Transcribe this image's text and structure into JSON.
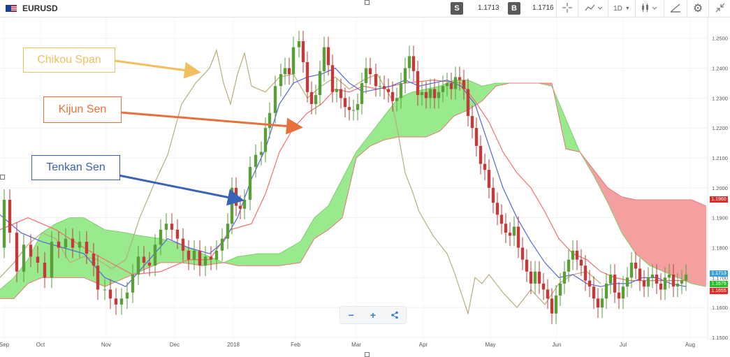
{
  "header": {
    "symbol": "EURUSD",
    "sell_label": "S",
    "sell_price": "1.1713",
    "buy_label": "B",
    "buy_price": "1.1716",
    "timeframe": "1D"
  },
  "annotations": {
    "chikou": {
      "label": "Chikou Span",
      "color": "#f0c060"
    },
    "kijun": {
      "label": "Kijun Sen",
      "color": "#e8703a"
    },
    "tenkan": {
      "label": "Tenkan Sen",
      "color": "#3a62b8"
    }
  },
  "zoom_controls": {
    "minus": "−",
    "plus": "+"
  },
  "colors": {
    "bull": "#5a9e3a",
    "bear": "#c23b3b",
    "cloud_bull": "#98ea8c",
    "cloud_bear": "#f4a0a0",
    "tenkan": "#5566e0",
    "kijun": "#f07070",
    "chikou": "#b8ad7a"
  },
  "chart_data": {
    "type": "candlestick",
    "y_ticks": [
      "1.2500",
      "1.2400",
      "1.2300",
      "1.2200",
      "1.2100",
      "1.2000",
      "1.1900",
      "1.1800",
      "1.1700",
      "1.1600",
      "1.1500"
    ],
    "x_labels": [
      "Sep",
      "Oct",
      "Nov",
      "Dec",
      "2018",
      "Feb",
      "Mar",
      "Apr",
      "May",
      "Jun",
      "Jul",
      "Aug"
    ],
    "ylim": [
      1.15,
      1.256
    ],
    "price_tags": [
      {
        "value": "1.1960",
        "price": 1.196,
        "color": "#e02b2b"
      },
      {
        "value": "1.1713",
        "price": 1.1713,
        "color": "#3aa0e0"
      },
      {
        "value": "1.1679",
        "price": 1.1679,
        "color": "#24c024"
      },
      {
        "value": "1.1655",
        "price": 1.1655,
        "color": "#e02b2b"
      }
    ],
    "close_series": [
      [
        0,
        1.18
      ],
      [
        6,
        1.196
      ],
      [
        14,
        1.185
      ],
      [
        24,
        1.172
      ],
      [
        34,
        1.181
      ],
      [
        44,
        1.177
      ],
      [
        54,
        1.175
      ],
      [
        64,
        1.17
      ],
      [
        74,
        1.182
      ],
      [
        84,
        1.18
      ],
      [
        94,
        1.183
      ],
      [
        104,
        1.18
      ],
      [
        114,
        1.182
      ],
      [
        124,
        1.178
      ],
      [
        134,
        1.174
      ],
      [
        140,
        1.166
      ],
      [
        150,
        1.166
      ],
      [
        158,
        1.163
      ],
      [
        166,
        1.161
      ],
      [
        174,
        1.163
      ],
      [
        182,
        1.165
      ],
      [
        190,
        1.171
      ],
      [
        198,
        1.177
      ],
      [
        206,
        1.175
      ],
      [
        214,
        1.174
      ],
      [
        222,
        1.181
      ],
      [
        230,
        1.186
      ],
      [
        238,
        1.188
      ],
      [
        246,
        1.186
      ],
      [
        254,
        1.183
      ],
      [
        262,
        1.179
      ],
      [
        270,
        1.176
      ],
      [
        278,
        1.179
      ],
      [
        286,
        1.174
      ],
      [
        294,
        1.177
      ],
      [
        302,
        1.176
      ],
      [
        310,
        1.179
      ],
      [
        318,
        1.183
      ],
      [
        326,
        1.188
      ],
      [
        332,
        1.2
      ],
      [
        338,
        1.194
      ],
      [
        344,
        1.193
      ],
      [
        350,
        1.196
      ],
      [
        358,
        1.207
      ],
      [
        366,
        1.211
      ],
      [
        374,
        1.212
      ],
      [
        380,
        1.22
      ],
      [
        386,
        1.225
      ],
      [
        394,
        1.234
      ],
      [
        402,
        1.238
      ],
      [
        408,
        1.24
      ],
      [
        414,
        1.238
      ],
      [
        420,
        1.247
      ],
      [
        428,
        1.249
      ],
      [
        434,
        1.242
      ],
      [
        440,
        1.232
      ],
      [
        446,
        1.228
      ],
      [
        452,
        1.231
      ],
      [
        458,
        1.239
      ],
      [
        464,
        1.247
      ],
      [
        470,
        1.241
      ],
      [
        476,
        1.232
      ],
      [
        482,
        1.233
      ],
      [
        488,
        1.23
      ],
      [
        494,
        1.227
      ],
      [
        500,
        1.226
      ],
      [
        506,
        1.226
      ],
      [
        512,
        1.228
      ],
      [
        518,
        1.235
      ],
      [
        524,
        1.24
      ],
      [
        530,
        1.238
      ],
      [
        538,
        1.234
      ],
      [
        544,
        1.234
      ],
      [
        550,
        1.233
      ],
      [
        556,
        1.232
      ],
      [
        562,
        1.229
      ],
      [
        568,
        1.23
      ],
      [
        574,
        1.235
      ],
      [
        580,
        1.24
      ],
      [
        586,
        1.244
      ],
      [
        592,
        1.239
      ],
      [
        598,
        1.231
      ],
      [
        604,
        1.232
      ],
      [
        610,
        1.23
      ],
      [
        616,
        1.233
      ],
      [
        622,
        1.23
      ],
      [
        628,
        1.232
      ],
      [
        634,
        1.234
      ],
      [
        640,
        1.235
      ],
      [
        646,
        1.233
      ],
      [
        652,
        1.237
      ],
      [
        658,
        1.236
      ],
      [
        664,
        1.233
      ],
      [
        670,
        1.224
      ],
      [
        676,
        1.22
      ],
      [
        682,
        1.214
      ],
      [
        688,
        1.208
      ],
      [
        694,
        1.206
      ],
      [
        700,
        1.2
      ],
      [
        706,
        1.195
      ],
      [
        712,
        1.191
      ],
      [
        718,
        1.188
      ],
      [
        724,
        1.185
      ],
      [
        730,
        1.184
      ],
      [
        736,
        1.187
      ],
      [
        742,
        1.18
      ],
      [
        748,
        1.176
      ],
      [
        754,
        1.172
      ],
      [
        760,
        1.168
      ],
      [
        766,
        1.172
      ],
      [
        772,
        1.168
      ],
      [
        778,
        1.166
      ],
      [
        784,
        1.163
      ],
      [
        790,
        1.158
      ],
      [
        796,
        1.164
      ],
      [
        802,
        1.168
      ],
      [
        808,
        1.172
      ],
      [
        814,
        1.176
      ],
      [
        820,
        1.179
      ],
      [
        826,
        1.176
      ],
      [
        832,
        1.174
      ],
      [
        838,
        1.169
      ],
      [
        844,
        1.167
      ],
      [
        850,
        1.163
      ],
      [
        856,
        1.16
      ],
      [
        862,
        1.163
      ],
      [
        868,
        1.168
      ],
      [
        874,
        1.171
      ],
      [
        880,
        1.165
      ],
      [
        886,
        1.163
      ],
      [
        892,
        1.167
      ],
      [
        898,
        1.17
      ],
      [
        904,
        1.175
      ],
      [
        910,
        1.173
      ],
      [
        916,
        1.169
      ],
      [
        922,
        1.167
      ],
      [
        928,
        1.17
      ],
      [
        934,
        1.171
      ],
      [
        940,
        1.168
      ],
      [
        946,
        1.166
      ],
      [
        952,
        1.17
      ],
      [
        958,
        1.171
      ],
      [
        964,
        1.167
      ],
      [
        970,
        1.168
      ],
      [
        976,
        1.169
      ],
      [
        982,
        1.171
      ]
    ],
    "tenkan": [
      [
        0,
        1.191
      ],
      [
        30,
        1.185
      ],
      [
        60,
        1.182
      ],
      [
        90,
        1.18
      ],
      [
        120,
        1.178
      ],
      [
        150,
        1.17
      ],
      [
        180,
        1.167
      ],
      [
        210,
        1.175
      ],
      [
        240,
        1.183
      ],
      [
        270,
        1.18
      ],
      [
        300,
        1.178
      ],
      [
        320,
        1.182
      ],
      [
        340,
        1.19
      ],
      [
        360,
        1.203
      ],
      [
        380,
        1.213
      ],
      [
        400,
        1.228
      ],
      [
        420,
        1.235
      ],
      [
        440,
        1.237
      ],
      [
        460,
        1.238
      ],
      [
        480,
        1.24
      ],
      [
        500,
        1.235
      ],
      [
        520,
        1.232
      ],
      [
        540,
        1.233
      ],
      [
        560,
        1.234
      ],
      [
        580,
        1.236
      ],
      [
        600,
        1.234
      ],
      [
        620,
        1.235
      ],
      [
        640,
        1.236
      ],
      [
        660,
        1.234
      ],
      [
        680,
        1.228
      ],
      [
        700,
        1.214
      ],
      [
        720,
        1.2
      ],
      [
        740,
        1.19
      ],
      [
        760,
        1.182
      ],
      [
        780,
        1.175
      ],
      [
        800,
        1.17
      ],
      [
        820,
        1.171
      ],
      [
        840,
        1.168
      ],
      [
        860,
        1.167
      ],
      [
        880,
        1.168
      ],
      [
        900,
        1.168
      ],
      [
        920,
        1.17
      ],
      [
        940,
        1.17
      ],
      [
        960,
        1.168
      ],
      [
        982,
        1.167
      ]
    ],
    "kijun": [
      [
        0,
        1.186
      ],
      [
        40,
        1.19
      ],
      [
        80,
        1.186
      ],
      [
        120,
        1.18
      ],
      [
        150,
        1.176
      ],
      [
        190,
        1.171
      ],
      [
        230,
        1.172
      ],
      [
        270,
        1.176
      ],
      [
        300,
        1.176
      ],
      [
        330,
        1.186
      ],
      [
        360,
        1.188
      ],
      [
        380,
        1.198
      ],
      [
        400,
        1.212
      ],
      [
        420,
        1.22
      ],
      [
        440,
        1.225
      ],
      [
        460,
        1.228
      ],
      [
        480,
        1.233
      ],
      [
        500,
        1.232
      ],
      [
        520,
        1.234
      ],
      [
        540,
        1.233
      ],
      [
        560,
        1.234
      ],
      [
        580,
        1.235
      ],
      [
        620,
        1.236
      ],
      [
        660,
        1.235
      ],
      [
        680,
        1.229
      ],
      [
        700,
        1.222
      ],
      [
        720,
        1.212
      ],
      [
        740,
        1.205
      ],
      [
        760,
        1.2
      ],
      [
        780,
        1.192
      ],
      [
        800,
        1.183
      ],
      [
        820,
        1.178
      ],
      [
        840,
        1.176
      ],
      [
        860,
        1.172
      ],
      [
        880,
        1.17
      ],
      [
        900,
        1.169
      ],
      [
        940,
        1.169
      ],
      [
        982,
        1.169
      ]
    ],
    "chikou": [
      [
        0,
        1.17
      ],
      [
        20,
        1.175
      ],
      [
        40,
        1.181
      ],
      [
        60,
        1.185
      ],
      [
        80,
        1.183
      ],
      [
        100,
        1.175
      ],
      [
        120,
        1.177
      ],
      [
        140,
        1.176
      ],
      [
        160,
        1.173
      ],
      [
        180,
        1.176
      ],
      [
        200,
        1.19
      ],
      [
        220,
        1.201
      ],
      [
        240,
        1.211
      ],
      [
        260,
        1.228
      ],
      [
        280,
        1.235
      ],
      [
        300,
        1.24
      ],
      [
        310,
        1.246
      ],
      [
        320,
        1.235
      ],
      [
        330,
        1.228
      ],
      [
        340,
        1.238
      ],
      [
        350,
        1.245
      ],
      [
        360,
        1.234
      ],
      [
        380,
        1.232
      ],
      [
        400,
        1.237
      ],
      [
        420,
        1.238
      ],
      [
        440,
        1.23
      ],
      [
        460,
        1.234
      ],
      [
        480,
        1.237
      ],
      [
        500,
        1.233
      ],
      [
        520,
        1.236
      ],
      [
        540,
        1.238
      ],
      [
        560,
        1.23
      ],
      [
        570,
        1.218
      ],
      [
        580,
        1.205
      ],
      [
        590,
        1.199
      ],
      [
        600,
        1.192
      ],
      [
        610,
        1.188
      ],
      [
        620,
        1.184
      ],
      [
        640,
        1.178
      ],
      [
        650,
        1.172
      ],
      [
        660,
        1.165
      ],
      [
        670,
        1.158
      ],
      [
        680,
        1.17
      ],
      [
        690,
        1.168
      ],
      [
        700,
        1.171
      ],
      [
        720,
        1.165
      ],
      [
        740,
        1.16
      ],
      [
        760,
        1.166
      ],
      [
        780,
        1.161
      ],
      [
        800,
        1.168
      ],
      [
        820,
        1.171
      ],
      [
        840,
        1.172
      ],
      [
        860,
        1.168
      ]
    ],
    "span_a": [
      [
        0,
        1.166
      ],
      [
        20,
        1.17
      ],
      [
        40,
        1.176
      ],
      [
        60,
        1.185
      ],
      [
        80,
        1.188
      ],
      [
        100,
        1.19
      ],
      [
        120,
        1.19
      ],
      [
        150,
        1.186
      ],
      [
        180,
        1.185
      ],
      [
        200,
        1.184
      ],
      [
        230,
        1.183
      ],
      [
        260,
        1.181
      ],
      [
        290,
        1.178
      ],
      [
        320,
        1.175
      ],
      [
        340,
        1.177
      ],
      [
        370,
        1.178
      ],
      [
        400,
        1.178
      ],
      [
        430,
        1.182
      ],
      [
        450,
        1.19
      ],
      [
        470,
        1.194
      ],
      [
        490,
        1.203
      ],
      [
        510,
        1.212
      ],
      [
        530,
        1.218
      ],
      [
        550,
        1.224
      ],
      [
        570,
        1.23
      ],
      [
        590,
        1.232
      ],
      [
        610,
        1.233
      ],
      [
        630,
        1.234
      ],
      [
        650,
        1.236
      ],
      [
        670,
        1.236
      ],
      [
        690,
        1.234
      ],
      [
        710,
        1.235
      ],
      [
        730,
        1.235
      ],
      [
        750,
        1.235
      ],
      [
        770,
        1.235
      ],
      [
        790,
        1.234
      ],
      [
        810,
        1.223
      ],
      [
        830,
        1.212
      ],
      [
        850,
        1.204
      ],
      [
        870,
        1.195
      ],
      [
        890,
        1.185
      ],
      [
        910,
        1.178
      ],
      [
        930,
        1.174
      ],
      [
        950,
        1.172
      ],
      [
        970,
        1.17
      ],
      [
        990,
        1.168
      ],
      [
        1010,
        1.167
      ]
    ],
    "span_b": [
      [
        0,
        1.163
      ],
      [
        20,
        1.163
      ],
      [
        40,
        1.168
      ],
      [
        60,
        1.17
      ],
      [
        80,
        1.17
      ],
      [
        100,
        1.17
      ],
      [
        120,
        1.17
      ],
      [
        150,
        1.167
      ],
      [
        180,
        1.17
      ],
      [
        200,
        1.172
      ],
      [
        230,
        1.175
      ],
      [
        260,
        1.175
      ],
      [
        290,
        1.174
      ],
      [
        320,
        1.175
      ],
      [
        340,
        1.174
      ],
      [
        370,
        1.174
      ],
      [
        400,
        1.174
      ],
      [
        430,
        1.175
      ],
      [
        450,
        1.183
      ],
      [
        470,
        1.186
      ],
      [
        490,
        1.19
      ],
      [
        510,
        1.21
      ],
      [
        530,
        1.214
      ],
      [
        550,
        1.216
      ],
      [
        570,
        1.217
      ],
      [
        590,
        1.217
      ],
      [
        610,
        1.217
      ],
      [
        630,
        1.219
      ],
      [
        650,
        1.224
      ],
      [
        670,
        1.226
      ],
      [
        690,
        1.229
      ],
      [
        710,
        1.234
      ],
      [
        730,
        1.235
      ],
      [
        750,
        1.235
      ],
      [
        770,
        1.235
      ],
      [
        790,
        1.235
      ],
      [
        810,
        1.213
      ],
      [
        830,
        1.212
      ],
      [
        850,
        1.206
      ],
      [
        870,
        1.2
      ],
      [
        890,
        1.197
      ],
      [
        910,
        1.196
      ],
      [
        930,
        1.196
      ],
      [
        950,
        1.196
      ],
      [
        970,
        1.196
      ],
      [
        990,
        1.196
      ],
      [
        1010,
        1.194
      ]
    ]
  }
}
